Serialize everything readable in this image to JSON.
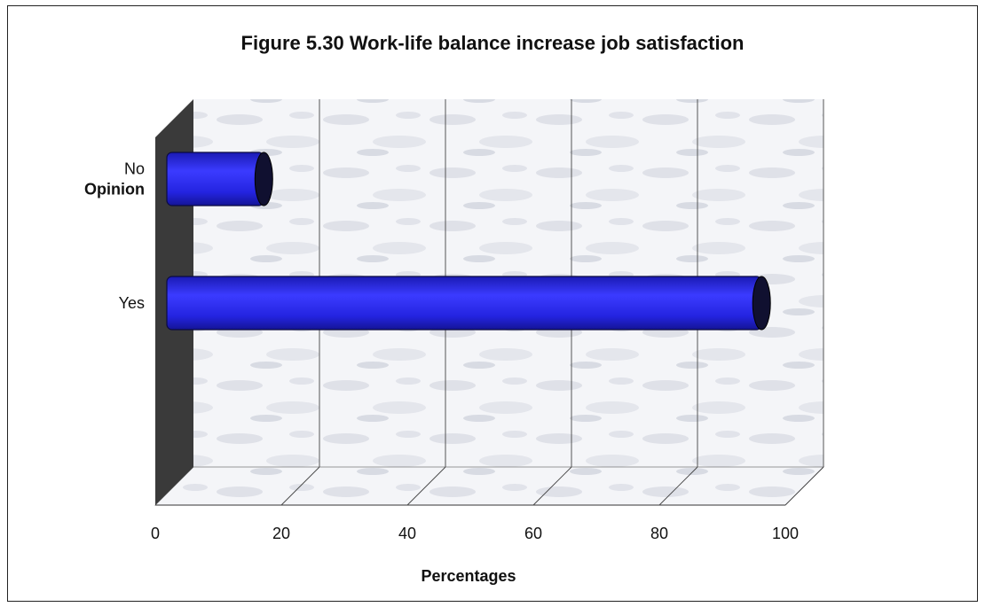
{
  "chart_data": {
    "type": "bar",
    "orientation": "horizontal",
    "title": "Figure 5.30 Work-life balance increase job satisfaction",
    "xlabel": "Percentages",
    "ylabel": "",
    "categories": [
      [
        "No",
        "Opinion"
      ],
      [
        "Yes"
      ]
    ],
    "values": [
      13,
      92
    ],
    "xlim": [
      0,
      100
    ],
    "xticks": [
      0,
      20,
      40,
      60,
      80,
      100
    ],
    "grid": true,
    "three_d": true,
    "colors": {
      "bar": "#2323e6",
      "bar_cap": "#101030",
      "wall": "#3a3a3a"
    }
  }
}
